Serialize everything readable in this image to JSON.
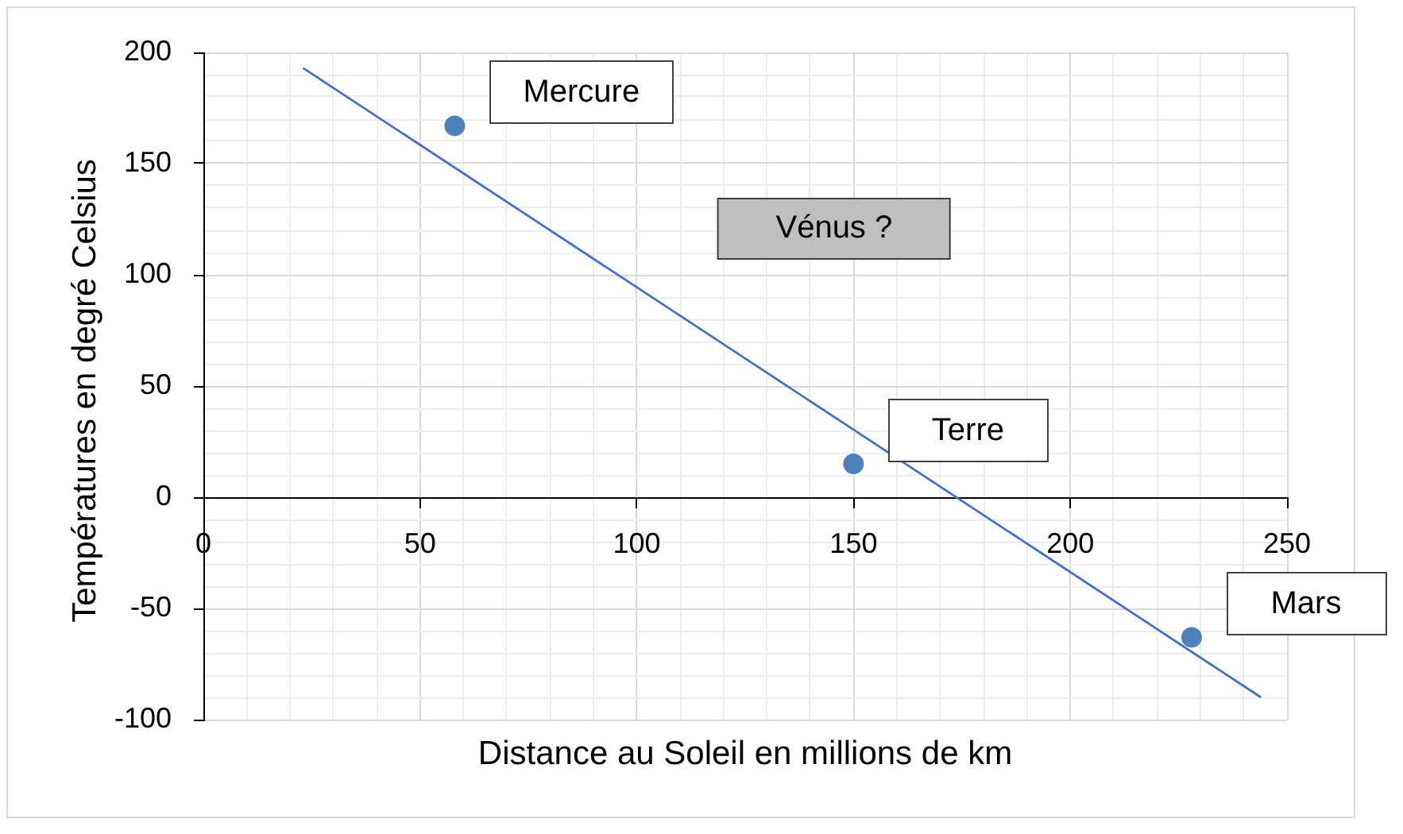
{
  "chart_data": {
    "type": "scatter",
    "xlabel": "Distance au Soleil en millions de km",
    "ylabel": "Températures en degré Celsius",
    "xlim": [
      0,
      250
    ],
    "ylim": [
      -100,
      200
    ],
    "xticks": [
      0,
      {
        "value": 10,
        "label": null
      },
      {
        "value": 20,
        "label": null
      },
      {
        "value": 30,
        "label": null
      },
      {
        "value": 40,
        "label": null
      },
      50,
      {
        "value": 60,
        "label": null
      },
      {
        "value": 70,
        "label": null
      },
      {
        "value": 80,
        "label": null
      },
      {
        "value": 90,
        "label": null
      },
      100,
      {
        "value": 110,
        "label": null
      },
      {
        "value": 120,
        "label": null
      },
      {
        "value": 130,
        "label": null
      },
      {
        "value": 140,
        "label": null
      },
      150,
      {
        "value": 160,
        "label": null
      },
      {
        "value": 170,
        "label": null
      },
      {
        "value": 180,
        "label": null
      },
      {
        "value": 190,
        "label": null
      },
      200,
      {
        "value": 210,
        "label": null
      },
      {
        "value": 220,
        "label": null
      },
      {
        "value": 230,
        "label": null
      },
      {
        "value": 240,
        "label": null
      },
      250
    ],
    "yticks": [
      -100,
      {
        "value": -90,
        "label": null
      },
      {
        "value": -80,
        "label": null
      },
      {
        "value": -70,
        "label": null
      },
      {
        "value": -60,
        "label": null
      },
      -50,
      {
        "value": -40,
        "label": null
      },
      {
        "value": -30,
        "label": null
      },
      {
        "value": -20,
        "label": null
      },
      {
        "value": -10,
        "label": null
      },
      0,
      {
        "value": 10,
        "label": null
      },
      {
        "value": 20,
        "label": null
      },
      {
        "value": 30,
        "label": null
      },
      {
        "value": 40,
        "label": null
      },
      50,
      {
        "value": 60,
        "label": null
      },
      {
        "value": 70,
        "label": null
      },
      {
        "value": 80,
        "label": null
      },
      {
        "value": 90,
        "label": null
      },
      100,
      {
        "value": 110,
        "label": null
      },
      {
        "value": 120,
        "label": null
      },
      {
        "value": 130,
        "label": null
      },
      {
        "value": 140,
        "label": null
      },
      150,
      {
        "value": 160,
        "label": null
      },
      {
        "value": 170,
        "label": null
      },
      {
        "value": 180,
        "label": null
      },
      {
        "value": 190,
        "label": null
      },
      200
    ],
    "grid": true,
    "marker": "circle",
    "series": [
      {
        "type": "scatter",
        "color": "#4f81bd",
        "x": [
          58,
          150,
          228
        ],
        "values": [
          167,
          15,
          -63
        ]
      },
      {
        "type": "line",
        "color": "#4472c4",
        "marker": "none",
        "x": [
          23,
          244
        ],
        "values": [
          193,
          -90
        ]
      }
    ],
    "annotations": [
      {
        "text": "Mercure",
        "x": 58,
        "y": 167
      },
      "Vénus ?",
      {
        "text": "Terre",
        "x": 150,
        "y": 15
      },
      {
        "text": "Mars",
        "x": 228,
        "y": -63
      }
    ]
  }
}
